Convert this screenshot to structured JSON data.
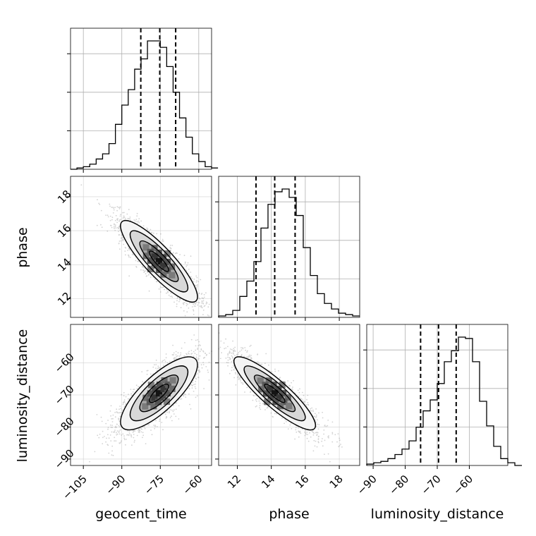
{
  "chart_data": {
    "type": "corner",
    "parameters": [
      "geocent_time",
      "phase",
      "luminosity_distance"
    ],
    "ranges": {
      "geocent_time": [
        -110,
        -55
      ],
      "phase": [
        10.9,
        19.2
      ],
      "luminosity_distance": [
        -92,
        -48
      ]
    },
    "ticks": {
      "geocent_time": [
        -105,
        -90,
        -75,
        -60
      ],
      "phase": [
        12,
        14,
        16,
        18
      ],
      "luminosity_distance": [
        -90,
        -80,
        -70,
        -60
      ]
    },
    "tick_labels": {
      "geocent_time": [
        "−105",
        "−90",
        "−75",
        "−60"
      ],
      "phase": [
        "12",
        "14",
        "16",
        "18"
      ],
      "luminosity_distance": [
        "−90",
        "−80",
        "−70",
        "−60"
      ]
    },
    "quantiles": {
      "geocent_time": [
        -82.6,
        -75.2,
        -69.0
      ],
      "phase": [
        13.1,
        14.2,
        15.4
      ],
      "luminosity_distance": [
        -75.2,
        -69.6,
        -64.1
      ]
    },
    "histograms": {
      "geocent_time": {
        "edges_start": -110,
        "bin_width": 2.5,
        "counts": [
          0,
          1,
          2,
          4,
          8,
          12,
          20,
          35,
          50,
          62,
          78,
          86,
          100,
          100,
          95,
          80,
          60,
          40,
          25,
          12,
          6,
          2,
          1
        ]
      },
      "phase": {
        "edges_start": 10.9,
        "bin_width": 0.415,
        "counts": [
          1,
          2,
          5,
          15,
          26,
          40,
          64,
          81,
          90,
          92,
          86,
          73,
          50,
          30,
          17,
          10,
          6,
          3,
          2,
          1
        ]
      },
      "luminosity_distance": {
        "edges_start": -92,
        "bin_width": 2.2,
        "counts": [
          1,
          2,
          3,
          5,
          8,
          12,
          18,
          28,
          40,
          48,
          60,
          76,
          84,
          94,
          93,
          76,
          47,
          29,
          14,
          5,
          2,
          0
        ]
      }
    },
    "correlations": {
      "phase|geocent_time": -0.87,
      "luminosity_distance|geocent_time": 0.78,
      "luminosity_distance|phase": -0.88
    },
    "means": {
      "geocent_time": -75.5,
      "phase": 14.2,
      "luminosity_distance": -69.5
    },
    "stds": {
      "geocent_time": 7.5,
      "phase": 1.2,
      "luminosity_distance": 5.7
    },
    "contour_levels_sigma": [
      0.5,
      1.0,
      1.5,
      2.0
    ],
    "grid": true,
    "scatter_color": "#808080",
    "contour_color": "#000000",
    "quantile_line_style": "dashed"
  }
}
